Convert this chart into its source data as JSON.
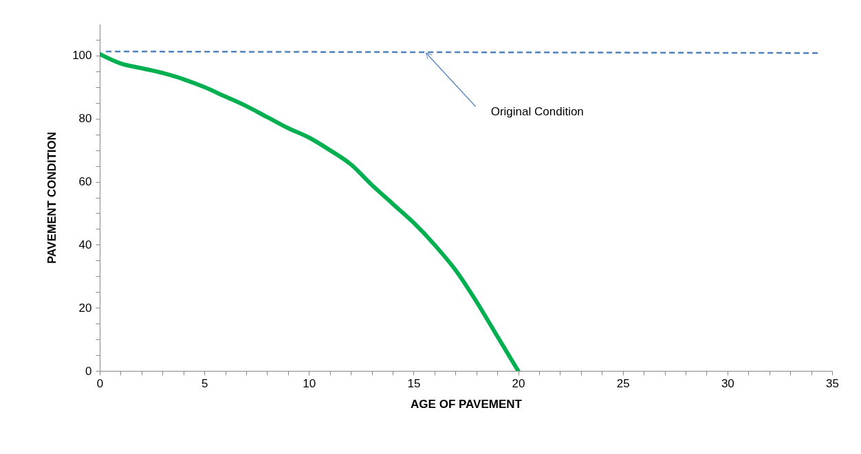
{
  "chart_data": {
    "type": "line",
    "xlabel": "AGE OF PAVEMENT",
    "ylabel": "PAVEMENT CONDITION",
    "xlim": [
      0,
      35
    ],
    "ylim": [
      0,
      110
    ],
    "xticks": [
      0,
      {
        "value": 1,
        "label": null
      },
      {
        "value": 2,
        "label": null
      },
      {
        "value": 3,
        "label": null
      },
      {
        "value": 4,
        "label": null
      },
      5,
      {
        "value": 6,
        "label": null
      },
      {
        "value": 7,
        "label": null
      },
      {
        "value": 8,
        "label": null
      },
      {
        "value": 9,
        "label": null
      },
      10,
      {
        "value": 11,
        "label": null
      },
      {
        "value": 12,
        "label": null
      },
      {
        "value": 13,
        "label": null
      },
      {
        "value": 14,
        "label": null
      },
      15,
      {
        "value": 16,
        "label": null
      },
      {
        "value": 17,
        "label": null
      },
      {
        "value": 18,
        "label": null
      },
      {
        "value": 19,
        "label": null
      },
      20,
      {
        "value": 21,
        "label": null
      },
      {
        "value": 22,
        "label": null
      },
      {
        "value": 23,
        "label": null
      },
      {
        "value": 24,
        "label": null
      },
      25,
      {
        "value": 26,
        "label": null
      },
      {
        "value": 27,
        "label": null
      },
      {
        "value": 28,
        "label": null
      },
      {
        "value": 29,
        "label": null
      },
      30,
      {
        "value": 31,
        "label": null
      },
      {
        "value": 32,
        "label": null
      },
      {
        "value": 33,
        "label": null
      },
      {
        "value": 34,
        "label": null
      },
      35
    ],
    "yticks": [
      0,
      {
        "value": 5,
        "label": null
      },
      {
        "value": 10,
        "label": null
      },
      {
        "value": 15,
        "label": null
      },
      20,
      {
        "value": 25,
        "label": null
      },
      {
        "value": 30,
        "label": null
      },
      {
        "value": 35,
        "label": null
      },
      40,
      {
        "value": 45,
        "label": null
      },
      {
        "value": 50,
        "label": null
      },
      {
        "value": 55,
        "label": null
      },
      60,
      {
        "value": 65,
        "label": null
      },
      {
        "value": 70,
        "label": null
      },
      {
        "value": 75,
        "label": null
      },
      80,
      {
        "value": 85,
        "label": null
      },
      {
        "value": 90,
        "label": null
      },
      {
        "value": 95,
        "label": null
      },
      100,
      {
        "value": 105,
        "label": null
      }
    ],
    "grid": false,
    "series": [
      {
        "color": "#00b050",
        "line_style": "solid",
        "x": [
          0,
          1,
          2,
          3,
          4,
          5,
          6,
          7,
          8,
          9,
          10,
          11,
          12,
          13,
          14,
          15,
          16,
          17,
          18,
          19,
          20
        ],
        "values": [
          100.5,
          97.5,
          96,
          94.5,
          92.5,
          90,
          87,
          84,
          80.5,
          77,
          74,
          70,
          65.5,
          59,
          53,
          47,
          40,
          32,
          22,
          11,
          0
        ]
      },
      {
        "color": "#4f81bd",
        "line_style": "dashed",
        "x": [
          0.3,
          34.4
        ],
        "values": [
          101.3,
          100.8
        ]
      }
    ],
    "annotations": [
      {
        "text": "Original Condition",
        "x": 15.6,
        "y": 100.8
      }
    ]
  }
}
